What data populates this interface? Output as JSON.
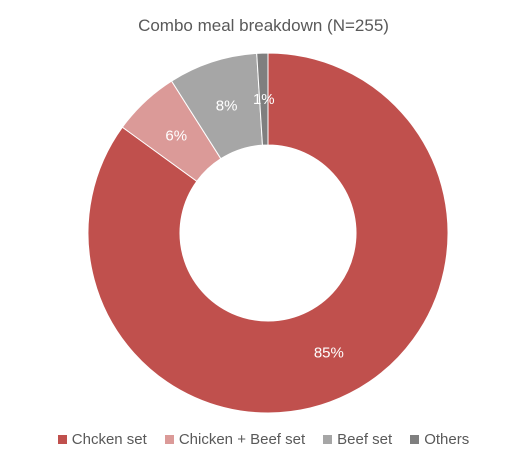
{
  "chart_data": {
    "type": "pie",
    "subtype": "donut",
    "title": "Combo meal breakdown (N=255)",
    "categories": [
      "Chcken set",
      "Chicken + Beef set",
      "Beef set",
      "Others"
    ],
    "values": [
      85,
      6,
      8,
      1
    ],
    "value_labels": [
      "85%",
      "6%",
      "8%",
      "1%"
    ],
    "colors": [
      "#c0504d",
      "#db9a98",
      "#a6a6a6",
      "#7f7f7f"
    ],
    "legend_position": "bottom"
  }
}
